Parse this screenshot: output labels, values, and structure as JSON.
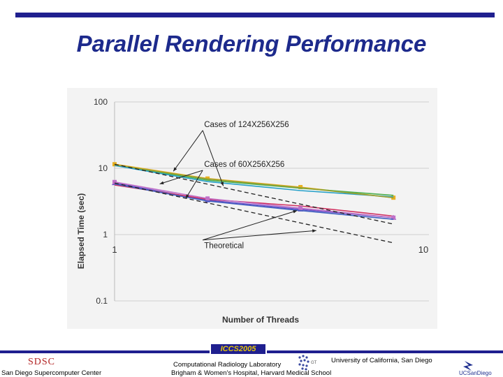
{
  "slide": {
    "title": "Parallel Rendering Performance"
  },
  "footer": {
    "conference": "ICCS2005",
    "sdsc_logo_text": "SDSC",
    "left_org": "San Diego Supercomputer Center",
    "mid_line1": "Computational Radiology Laboratory",
    "mid_line2": "Brigham & Women's Hospital, Harvard Medical School",
    "right_org": "University of California, San Diego",
    "ucsd_logo_text": "UCSanDiego"
  },
  "chart_data": {
    "type": "line",
    "xlabel": "Number of Threads",
    "ylabel": "Elapsed Time (sec)",
    "x_scale": "log",
    "y_scale": "log",
    "xlim": [
      1,
      10
    ],
    "ylim": [
      0.1,
      100
    ],
    "x_ticks": [
      {
        "v": 1,
        "label": "1"
      },
      {
        "v": 10,
        "label": "10"
      }
    ],
    "y_ticks": [
      {
        "v": 100,
        "label": "100"
      },
      {
        "v": 10,
        "label": "10"
      },
      {
        "v": 1,
        "label": "1"
      },
      {
        "v": 0.1,
        "label": "0.1"
      }
    ],
    "grid": true,
    "series": [
      {
        "group": "large",
        "color": "#e8b020",
        "marker": "square",
        "x": [
          1,
          2,
          4,
          8
        ],
        "y": [
          11.5,
          7.0,
          5.2,
          3.6
        ]
      },
      {
        "group": "large",
        "color": "#4caf50",
        "marker": "none",
        "x": [
          1,
          2,
          4,
          8
        ],
        "y": [
          11.2,
          6.6,
          5.0,
          3.9
        ]
      },
      {
        "group": "large",
        "color": "#26a0c8",
        "marker": "none",
        "x": [
          1,
          2,
          4,
          8
        ],
        "y": [
          11.0,
          6.3,
          4.6,
          3.7
        ]
      },
      {
        "group": "large",
        "color": "#9aa030",
        "marker": "none",
        "x": [
          1,
          2,
          4,
          8
        ],
        "y": [
          11.3,
          6.9,
          5.1,
          3.6
        ]
      },
      {
        "group": "small",
        "color": "#6a50c8",
        "marker": "triangle",
        "x": [
          1,
          2,
          4,
          8
        ],
        "y": [
          6.0,
          3.3,
          2.4,
          1.8
        ]
      },
      {
        "group": "small",
        "color": "#d03060",
        "marker": "none",
        "x": [
          1,
          2,
          4,
          8
        ],
        "y": [
          5.6,
          3.4,
          2.7,
          1.9
        ]
      },
      {
        "group": "small",
        "color": "#c070c8",
        "marker": "square",
        "x": [
          1,
          2,
          4,
          8
        ],
        "y": [
          6.2,
          3.5,
          2.5,
          1.8
        ]
      },
      {
        "group": "small",
        "color": "#4060c0",
        "marker": "none",
        "x": [
          1,
          2,
          4,
          8
        ],
        "y": [
          5.8,
          3.2,
          2.3,
          1.7
        ]
      },
      {
        "group": "theoretical",
        "color": "#222222",
        "marker": "none",
        "dashed": true,
        "x": [
          1,
          8
        ],
        "y": [
          11.5,
          1.44
        ]
      },
      {
        "group": "theoretical",
        "color": "#222222",
        "marker": "none",
        "dashed": true,
        "x": [
          1,
          8
        ],
        "y": [
          6.0,
          0.75
        ]
      }
    ],
    "annotations": [
      {
        "text": "Cases of 124X256X256",
        "anchor": {
          "x": 1.95,
          "y": 42
        },
        "arrows_to": [
          {
            "x": 1.55,
            "y": 9.0
          },
          {
            "x": 2.25,
            "y": 5.4
          }
        ]
      },
      {
        "text": "Cases of 60X256X256",
        "anchor": {
          "x": 1.95,
          "y": 10.5
        },
        "arrows_to": [
          {
            "x": 1.4,
            "y": 5.8
          },
          {
            "x": 1.7,
            "y": 3.5
          }
        ]
      },
      {
        "text": "Theoretical",
        "anchor": {
          "x": 1.95,
          "y": 0.62
        },
        "arrows_to": [
          {
            "x": 3.9,
            "y": 2.3
          },
          {
            "x": 4.5,
            "y": 1.15
          }
        ]
      }
    ]
  }
}
